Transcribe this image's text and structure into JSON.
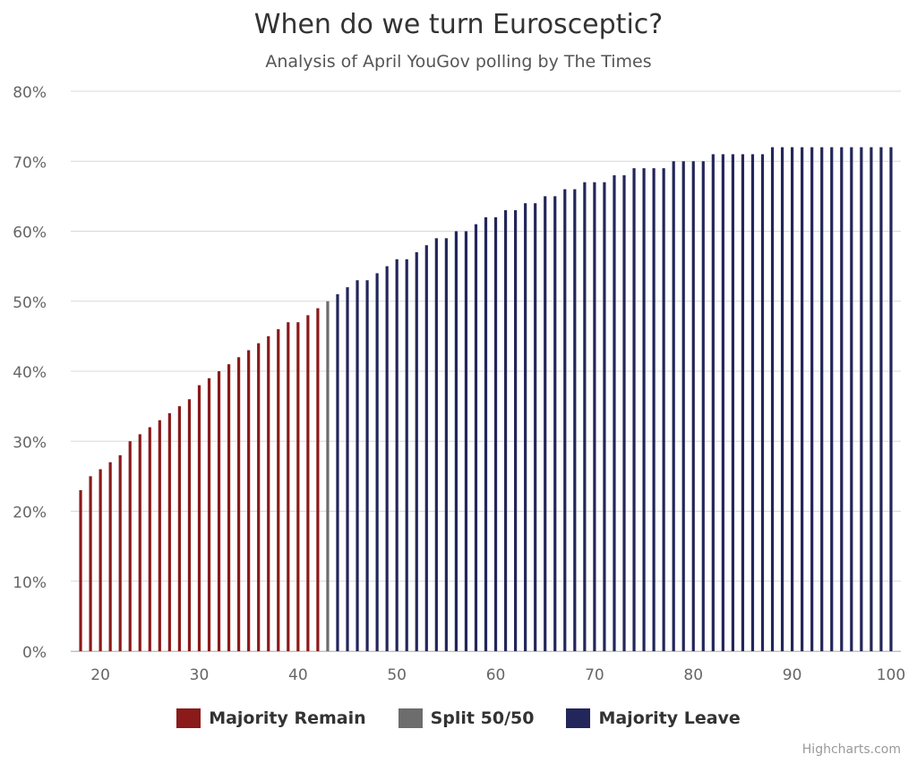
{
  "chart_data": {
    "type": "bar",
    "title": "When do we turn Eurosceptic?",
    "subtitle": "Analysis of April YouGov polling by The Times",
    "xlabel": "",
    "ylabel": "",
    "ylim": [
      0,
      80
    ],
    "y_ticks": [
      "0%",
      "10%",
      "20%",
      "30%",
      "40%",
      "50%",
      "60%",
      "70%",
      "80%"
    ],
    "y_tick_values": [
      0,
      10,
      20,
      30,
      40,
      50,
      60,
      70,
      80
    ],
    "xlim": [
      17,
      101
    ],
    "x_ticks": [
      20,
      30,
      40,
      50,
      60,
      70,
      80,
      90,
      100
    ],
    "x_start": 18,
    "grid": true,
    "legend_position": "bottom",
    "series": [
      {
        "name": "Majority Remain",
        "color": "#8b1a1a",
        "x_from": 18,
        "x_to": 42
      },
      {
        "name": "Split 50/50",
        "color": "#6d6d6d",
        "x_from": 43,
        "x_to": 43
      },
      {
        "name": "Majority Leave",
        "color": "#23265a",
        "x_from": 44,
        "x_to": 100
      }
    ],
    "values": [
      23,
      25,
      26,
      27,
      28,
      30,
      31,
      32,
      33,
      34,
      35,
      36,
      38,
      39,
      40,
      41,
      42,
      43,
      44,
      45,
      46,
      47,
      47,
      48,
      49,
      50,
      51,
      52,
      53,
      53,
      54,
      55,
      56,
      56,
      57,
      58,
      59,
      59,
      60,
      60,
      61,
      62,
      62,
      63,
      63,
      64,
      64,
      65,
      65,
      66,
      66,
      67,
      67,
      67,
      68,
      68,
      69,
      69,
      69,
      69,
      70,
      70,
      70,
      70,
      71,
      71,
      71,
      71,
      71,
      71,
      72,
      72,
      72,
      72,
      72,
      72,
      72,
      72,
      72,
      72,
      72,
      72,
      72
    ]
  },
  "legend": {
    "items": [
      {
        "label": "Majority Remain",
        "color": "#8b1a1a"
      },
      {
        "label": "Split 50/50",
        "color": "#6d6d6d"
      },
      {
        "label": "Majority Leave",
        "color": "#23265a"
      }
    ]
  },
  "credits": "Highcharts.com"
}
